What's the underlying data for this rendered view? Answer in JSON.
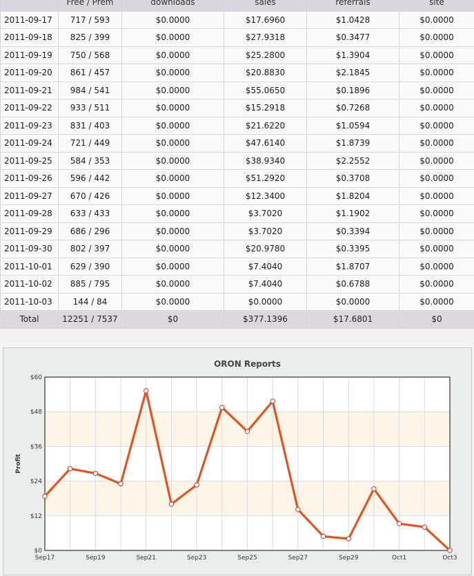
{
  "table": {
    "headers": [
      "",
      "Free / Prem",
      "downloads",
      "sales",
      "referrals",
      "site"
    ],
    "rows": [
      [
        "2011-09-17",
        "717 / 593",
        "$0.0000",
        "$17.6960",
        "$1.0428",
        "$0.0000"
      ],
      [
        "2011-09-18",
        "825 / 399",
        "$0.0000",
        "$27.9318",
        "$0.3477",
        "$0.0000"
      ],
      [
        "2011-09-19",
        "750 / 568",
        "$0.0000",
        "$25.2800",
        "$1.3904",
        "$0.0000"
      ],
      [
        "2011-09-20",
        "861 / 457",
        "$0.0000",
        "$20.8830",
        "$2.1845",
        "$0.0000"
      ],
      [
        "2011-09-21",
        "984 / 541",
        "$0.0000",
        "$55.0650",
        "$0.1896",
        "$0.0000"
      ],
      [
        "2011-09-22",
        "933 / 511",
        "$0.0000",
        "$15.2918",
        "$0.7268",
        "$0.0000"
      ],
      [
        "2011-09-23",
        "831 / 403",
        "$0.0000",
        "$21.6220",
        "$1.0594",
        "$0.0000"
      ],
      [
        "2011-09-24",
        "721 / 449",
        "$0.0000",
        "$47.6140",
        "$1.8739",
        "$0.0000"
      ],
      [
        "2011-09-25",
        "584 / 353",
        "$0.0000",
        "$38.9340",
        "$2.2552",
        "$0.0000"
      ],
      [
        "2011-09-26",
        "596 / 442",
        "$0.0000",
        "$51.2920",
        "$0.3708",
        "$0.0000"
      ],
      [
        "2011-09-27",
        "670 / 426",
        "$0.0000",
        "$12.3400",
        "$1.8204",
        "$0.0000"
      ],
      [
        "2011-09-28",
        "633 / 433",
        "$0.0000",
        "$3.7020",
        "$1.1902",
        "$0.0000"
      ],
      [
        "2011-09-29",
        "686 / 296",
        "$0.0000",
        "$3.7020",
        "$0.3394",
        "$0.0000"
      ],
      [
        "2011-09-30",
        "802 / 397",
        "$0.0000",
        "$20.9780",
        "$0.3395",
        "$0.0000"
      ],
      [
        "2011-10-01",
        "629 / 390",
        "$0.0000",
        "$7.4040",
        "$1.8707",
        "$0.0000"
      ],
      [
        "2011-10-02",
        "885 / 795",
        "$0.0000",
        "$7.4040",
        "$0.6788",
        "$0.0000"
      ],
      [
        "2011-10-03",
        "144 / 84",
        "$0.0000",
        "$0.0000",
        "$0.0000",
        "$0.0000"
      ]
    ],
    "total": [
      "Total",
      "12251 / 7537",
      "$0",
      "$377.1396",
      "$17.6801",
      "$0"
    ]
  },
  "chart_data": {
    "type": "line",
    "title": "ORON Reports",
    "xlabel": "",
    "ylabel": "Profit",
    "x": [
      "2011-09-17",
      "2011-09-18",
      "2011-09-19",
      "2011-09-20",
      "2011-09-21",
      "2011-09-22",
      "2011-09-23",
      "2011-09-24",
      "2011-09-25",
      "2011-09-26",
      "2011-09-27",
      "2011-09-28",
      "2011-09-29",
      "2011-09-30",
      "2011-10-01",
      "2011-10-02",
      "2011-10-03"
    ],
    "x_tick_labels": [
      "Sep17",
      "Sep19",
      "Sep21",
      "Sep23",
      "Sep25",
      "Sep27",
      "Sep29",
      "Oct1",
      "Oct3"
    ],
    "y_tick_labels": [
      "$0",
      "$12",
      "$24",
      "$36",
      "$48",
      "$60"
    ],
    "ylim": [
      0,
      60
    ],
    "series": [
      {
        "values": [
          18.74,
          28.28,
          26.67,
          23.07,
          55.25,
          16.02,
          22.68,
          49.49,
          41.19,
          51.66,
          14.16,
          4.89,
          4.04,
          21.32,
          9.27,
          8.08,
          0.0
        ]
      }
    ],
    "grid": true,
    "colors": {
      "line": "#e2531f",
      "marker_fill": "#ffffff",
      "marker_stroke": "#c0392b",
      "band": "#fdf6e8"
    }
  }
}
